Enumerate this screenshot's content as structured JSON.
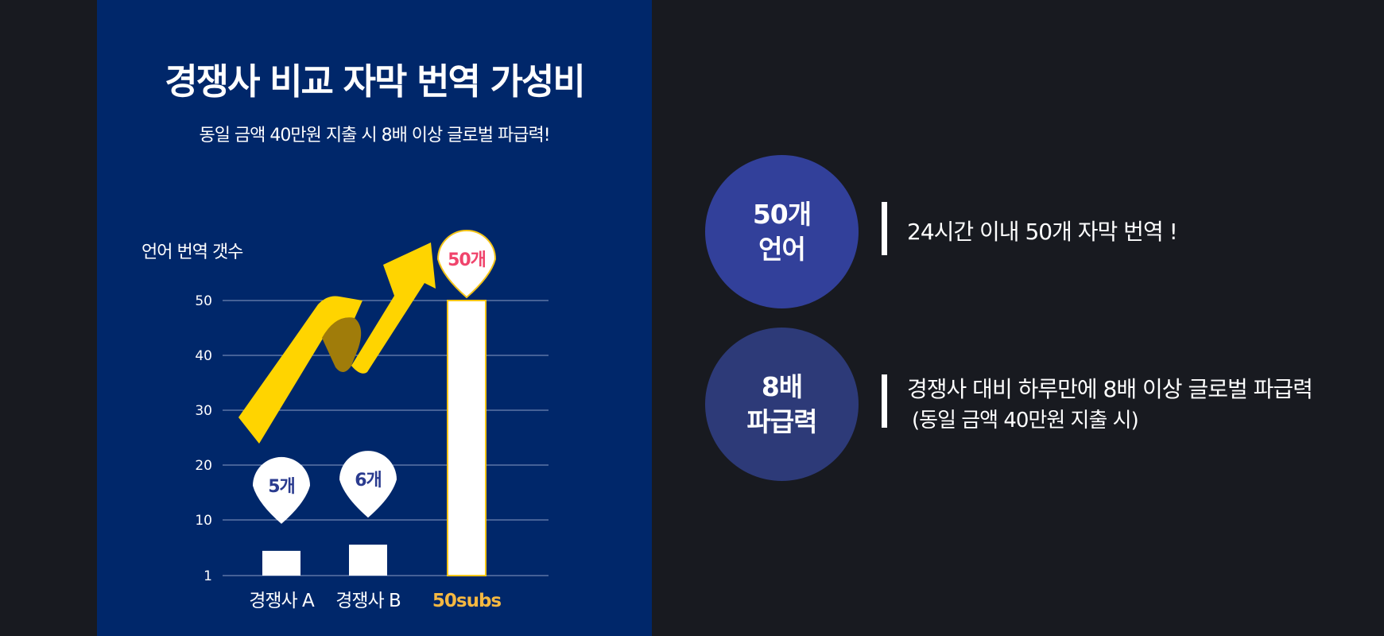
{
  "panel": {
    "title": "경쟁사 비교 자막 번역 가성비",
    "subtitle": "동일 금액 40만원 지출 시 8배 이상 글로벌 파급력!"
  },
  "chart_data": {
    "type": "bar",
    "ylabel": "언어 번역 갯수",
    "yticks": [
      1,
      10,
      20,
      30,
      40,
      50
    ],
    "ylim": [
      0,
      50
    ],
    "categories": [
      "경쟁사 A",
      "경쟁사 B",
      "50subs"
    ],
    "values": [
      5,
      6,
      50
    ],
    "data_labels": [
      "5개",
      "6개",
      "50개"
    ],
    "grid": true,
    "colors": {
      "panel_bg": "#00276a",
      "bar": "#ffffff",
      "highlight_outline": "#f5c518",
      "highlight_category": "#f5b841",
      "highlight_label": "#f0446c",
      "label_text": "#2a3b8f",
      "arrow": "#ffd400",
      "arrow_fold": "#a07c0a",
      "grid": "#8a9bc4"
    }
  },
  "stats": [
    {
      "circle_line1": "50개",
      "circle_line2": "언어",
      "description": "24시간 이내 50개 자막 번역 !",
      "note": "",
      "color": "#32409a"
    },
    {
      "circle_line1": "8배",
      "circle_line2": "파급력",
      "description": "경쟁사 대비 하루만에 8배 이상 글로벌 파급력",
      "note": "(동일 금액 40만원 지출 시)",
      "color": "#2d3a78"
    }
  ]
}
